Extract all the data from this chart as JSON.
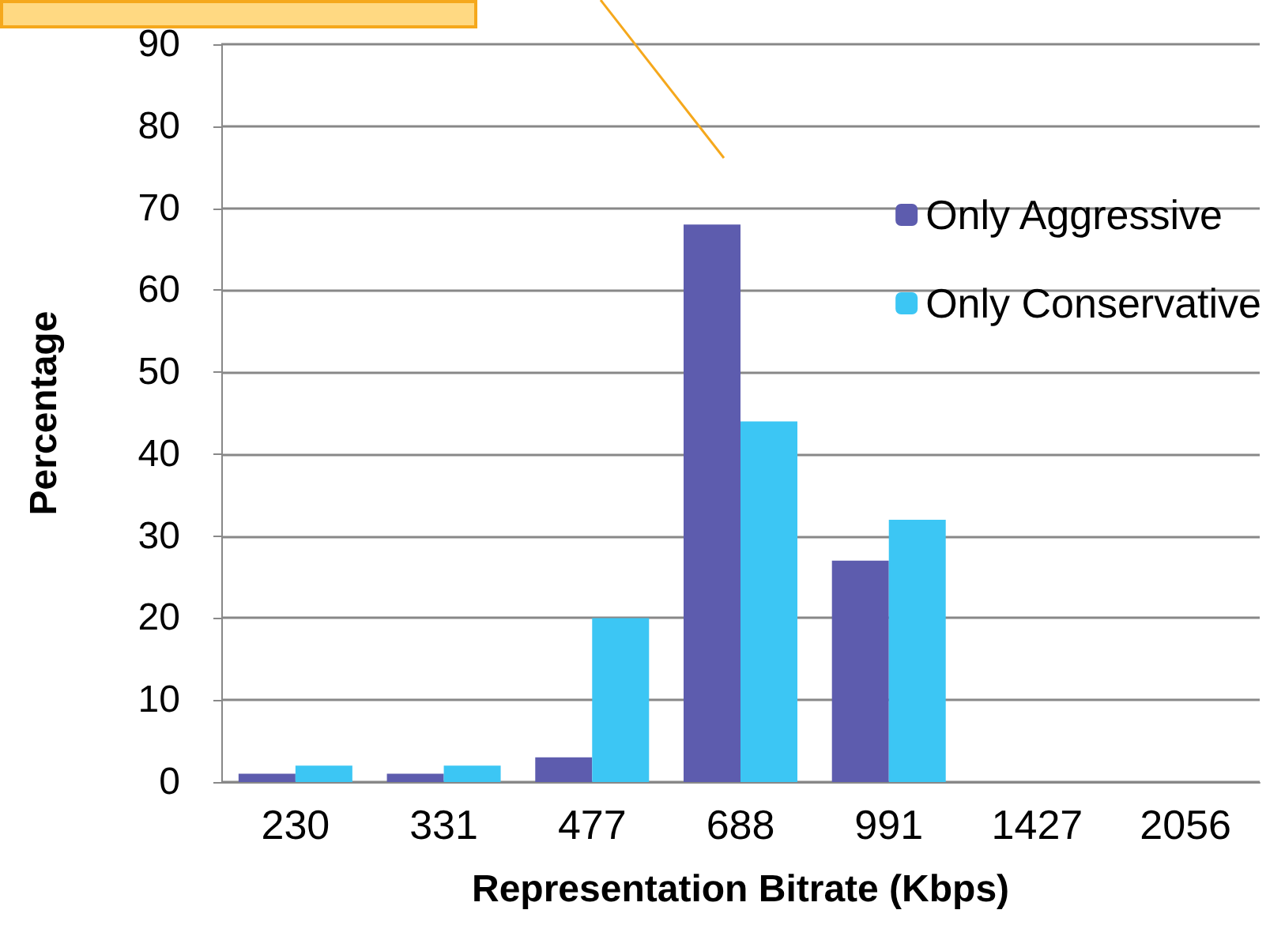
{
  "chart_data": {
    "type": "bar",
    "xlabel": "Representation Bitrate (Kbps)",
    "ylabel": "Percentage",
    "categories": [
      "230",
      "331",
      "477",
      "688",
      "991",
      "1427",
      "2056"
    ],
    "series": [
      {
        "name": "Only Aggressive",
        "color": "#5d5cae",
        "values": [
          1,
          1,
          3,
          68,
          27,
          0,
          0
        ]
      },
      {
        "name": "Only Conservative",
        "color": "#3cc6f4",
        "values": [
          2,
          2,
          20,
          44,
          32,
          0,
          0
        ]
      }
    ],
    "ylim": [
      0,
      90
    ],
    "yticks": [
      0,
      10,
      20,
      30,
      40,
      50,
      60,
      70,
      80,
      90
    ],
    "grid": "y",
    "legend": "top right"
  }
}
